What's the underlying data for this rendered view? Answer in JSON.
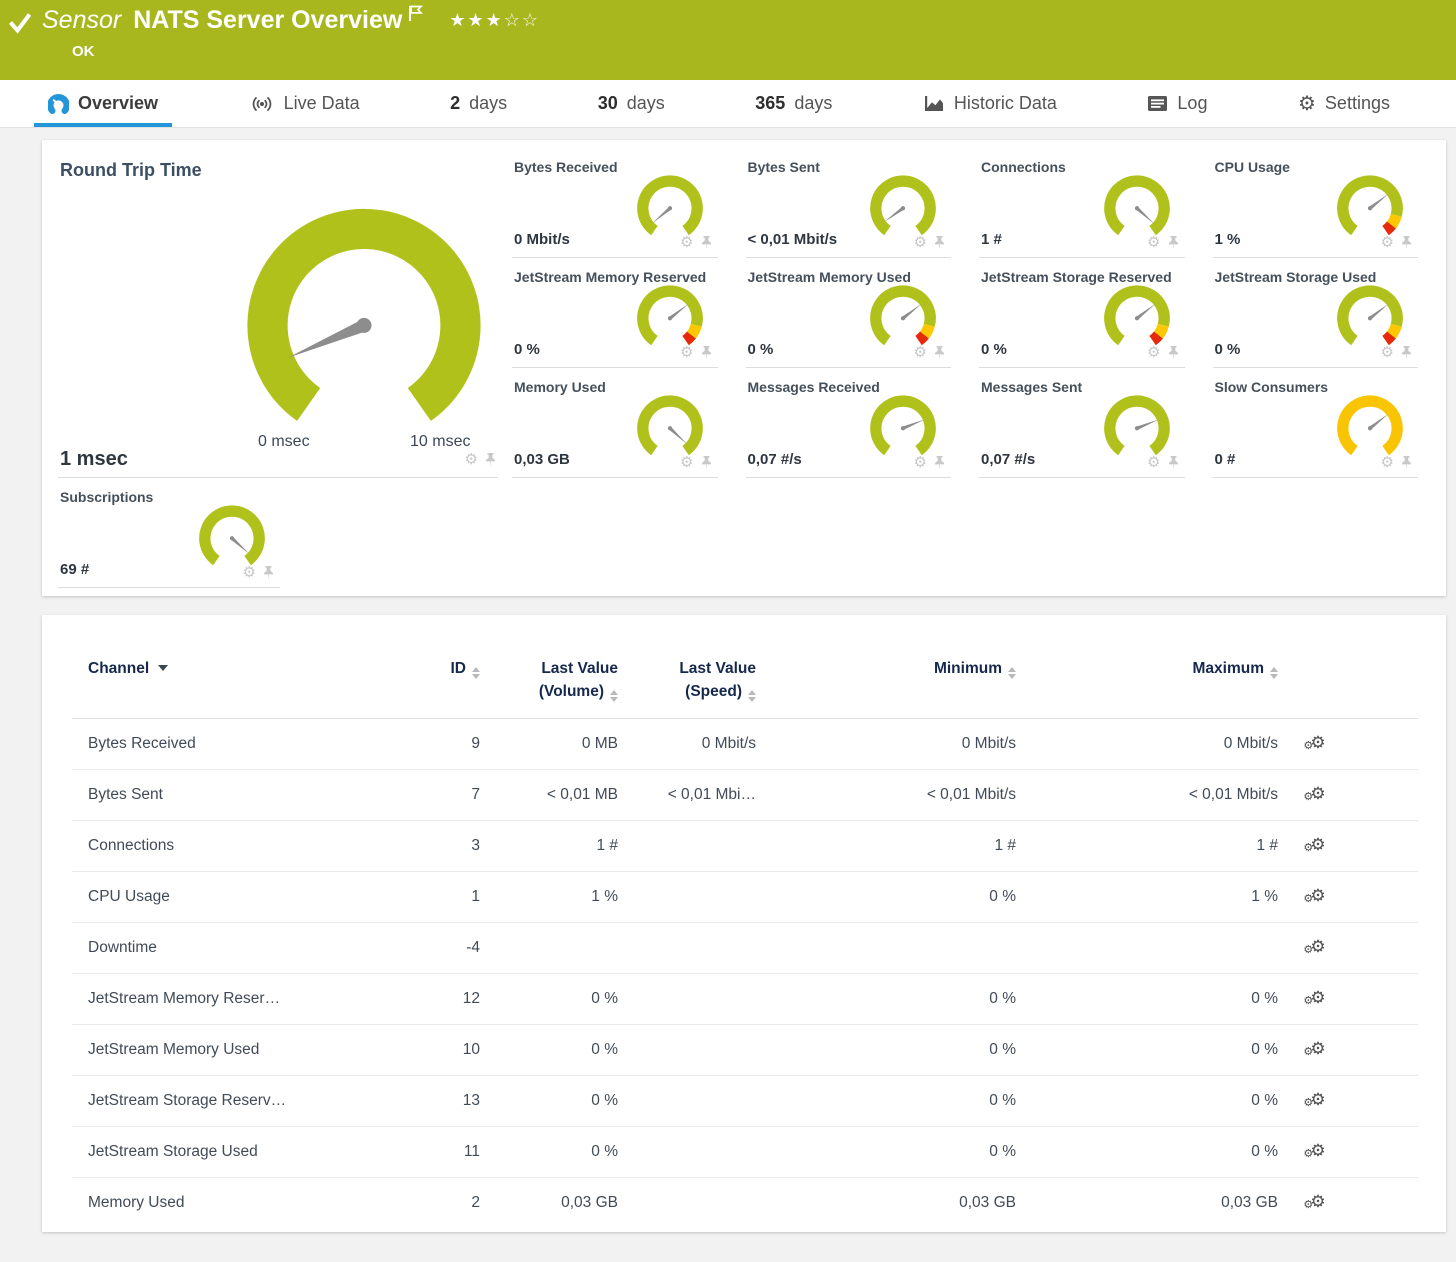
{
  "header": {
    "sensor_label": "Sensor",
    "title": "NATS Server Overview",
    "status": "OK",
    "rating_filled": 3,
    "rating_total": 5
  },
  "tabs": [
    {
      "label": "Overview",
      "icon": "gauge",
      "active": true
    },
    {
      "label": "Live Data",
      "icon": "broadcast",
      "active": false
    },
    {
      "num": "2",
      "label": "days",
      "active": false
    },
    {
      "num": "30",
      "label": "days",
      "active": false
    },
    {
      "num": "365",
      "label": "days",
      "active": false
    },
    {
      "label": "Historic Data",
      "icon": "chart",
      "active": false
    },
    {
      "label": "Log",
      "icon": "log",
      "active": false
    },
    {
      "label": "Settings",
      "icon": "gear",
      "active": false
    }
  ],
  "gauges": {
    "main": {
      "title": "Round Trip Time",
      "value": "1 msec",
      "min_label": "0 msec",
      "max_label": "10 msec",
      "needle_deg": 157,
      "style": "green"
    },
    "small": [
      {
        "title": "Bytes Received",
        "value": "0 Mbit/s",
        "needle_deg": 140,
        "style": "green"
      },
      {
        "title": "Bytes Sent",
        "value": "< 0,01 Mbit/s",
        "needle_deg": 144,
        "style": "green"
      },
      {
        "title": "Connections",
        "value": "1 #",
        "needle_deg": 42,
        "style": "green"
      },
      {
        "title": "CPU Usage",
        "value": "1 %",
        "needle_deg": 322,
        "style": "warn"
      },
      {
        "title": "JetStream Memory Reserved",
        "value": "0 %",
        "needle_deg": 322,
        "style": "warn"
      },
      {
        "title": "JetStream Memory Used",
        "value": "0 %",
        "needle_deg": 322,
        "style": "warn"
      },
      {
        "title": "JetStream Storage Reserved",
        "value": "0 %",
        "needle_deg": 322,
        "style": "warn"
      },
      {
        "title": "JetStream Storage Used",
        "value": "0 %",
        "needle_deg": 322,
        "style": "warn"
      },
      {
        "title": "Memory Used",
        "value": "0,03 GB",
        "needle_deg": 43,
        "style": "green"
      },
      {
        "title": "Messages Received",
        "value": "0,07 #/s",
        "needle_deg": 338,
        "style": "green"
      },
      {
        "title": "Messages Sent",
        "value": "0,07 #/s",
        "needle_deg": 338,
        "style": "green"
      },
      {
        "title": "Slow Consumers",
        "value": "0 #",
        "needle_deg": 322,
        "style": "orange"
      }
    ],
    "subscriptions": {
      "title": "Subscriptions",
      "value": "69 #",
      "needle_deg": 42,
      "style": "green"
    }
  },
  "table": {
    "columns": [
      {
        "label": "Channel"
      },
      {
        "label": "ID"
      },
      {
        "label": "Last Value",
        "sub": "(Volume)"
      },
      {
        "label": "Last Value",
        "sub": "(Speed)"
      },
      {
        "label": "Minimum"
      },
      {
        "label": "Maximum"
      }
    ],
    "rows": [
      {
        "channel": "Bytes Received",
        "id": "9",
        "volume": "0 MB",
        "speed": "0 Mbit/s",
        "min": "0 Mbit/s",
        "max": "0 Mbit/s"
      },
      {
        "channel": "Bytes Sent",
        "id": "7",
        "volume": "< 0,01 MB",
        "speed": "< 0,01 Mbi…",
        "min": "< 0,01 Mbit/s",
        "max": "< 0,01 Mbit/s"
      },
      {
        "channel": "Connections",
        "id": "3",
        "volume": "1 #",
        "speed": "",
        "min": "1 #",
        "max": "1 #"
      },
      {
        "channel": "CPU Usage",
        "id": "1",
        "volume": "1 %",
        "speed": "",
        "min": "0 %",
        "max": "1 %"
      },
      {
        "channel": "Downtime",
        "id": "-4",
        "volume": "",
        "speed": "",
        "min": "",
        "max": ""
      },
      {
        "channel": "JetStream Memory Reser…",
        "id": "12",
        "volume": "0 %",
        "speed": "",
        "min": "0 %",
        "max": "0 %"
      },
      {
        "channel": "JetStream Memory Used",
        "id": "10",
        "volume": "0 %",
        "speed": "",
        "min": "0 %",
        "max": "0 %"
      },
      {
        "channel": "JetStream Storage Reserv…",
        "id": "13",
        "volume": "0 %",
        "speed": "",
        "min": "0 %",
        "max": "0 %"
      },
      {
        "channel": "JetStream Storage Used",
        "id": "11",
        "volume": "0 %",
        "speed": "",
        "min": "0 %",
        "max": "0 %"
      },
      {
        "channel": "Memory Used",
        "id": "2",
        "volume": "0,03 GB",
        "speed": "",
        "min": "0,03 GB",
        "max": "0,03 GB"
      }
    ]
  },
  "colors": {
    "header_green": "#a9b71e",
    "accent_blue": "#2296d8",
    "gauge_green": "#b1c11b",
    "gauge_yellow": "#fdc800",
    "gauge_red": "#e52a0c",
    "gauge_orange": "#f9c402",
    "needle_gray": "#8d8d8d"
  }
}
